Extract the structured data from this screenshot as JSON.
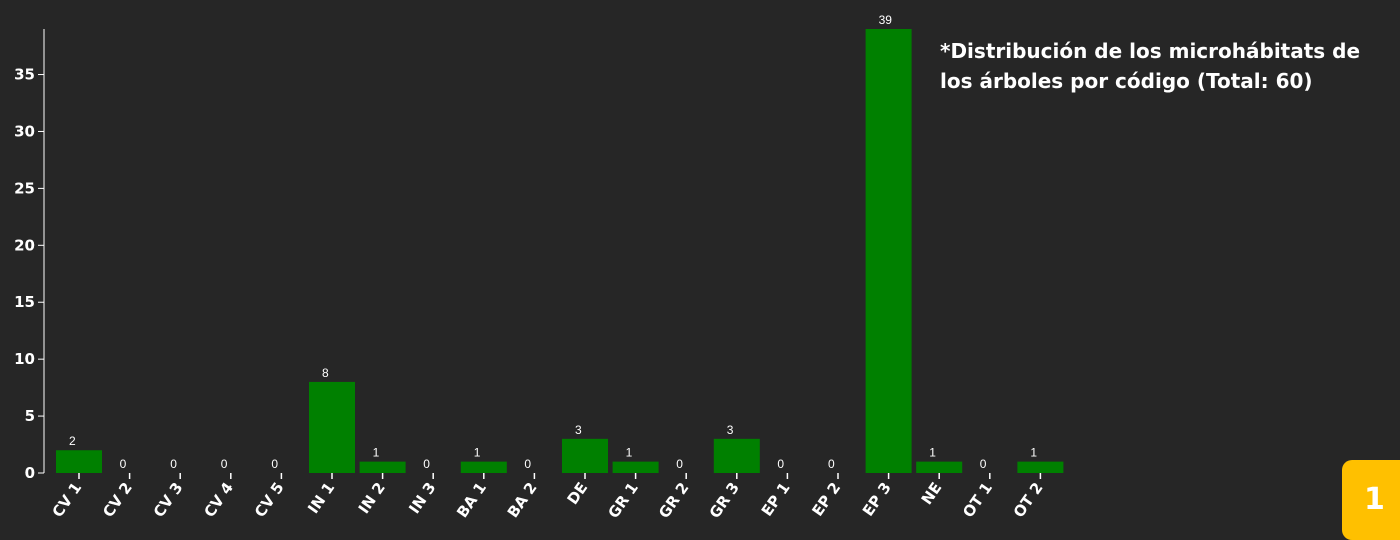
{
  "chart_data": {
    "type": "bar",
    "title": "*Distribución de los microhábitats de los árboles por código (Total: 60)",
    "categories": [
      "CV 1",
      "CV 2",
      "CV 3",
      "CV 4",
      "CV 5",
      "IN 1",
      "IN 2",
      "IN 3",
      "BA 1",
      "BA 2",
      "DE",
      "GR 1",
      "GR 2",
      "GR 3",
      "EP 1",
      "EP 2",
      "EP 3",
      "NE",
      "OT 1",
      "OT 2"
    ],
    "values": [
      2,
      0,
      0,
      0,
      0,
      8,
      1,
      0,
      1,
      0,
      3,
      1,
      0,
      3,
      0,
      0,
      39,
      1,
      0,
      1
    ],
    "xlabel": "",
    "ylabel": "",
    "ylim": [
      0,
      39
    ],
    "yticks": [
      0,
      5,
      10,
      15,
      20,
      25,
      30,
      35
    ],
    "bar_color": "#008000",
    "grid": false,
    "data_labels": true
  },
  "page_badge": "1",
  "colors": {
    "background": "#262626",
    "text": "#ffffff",
    "bar": "#008000",
    "badge": "#ffc000"
  }
}
